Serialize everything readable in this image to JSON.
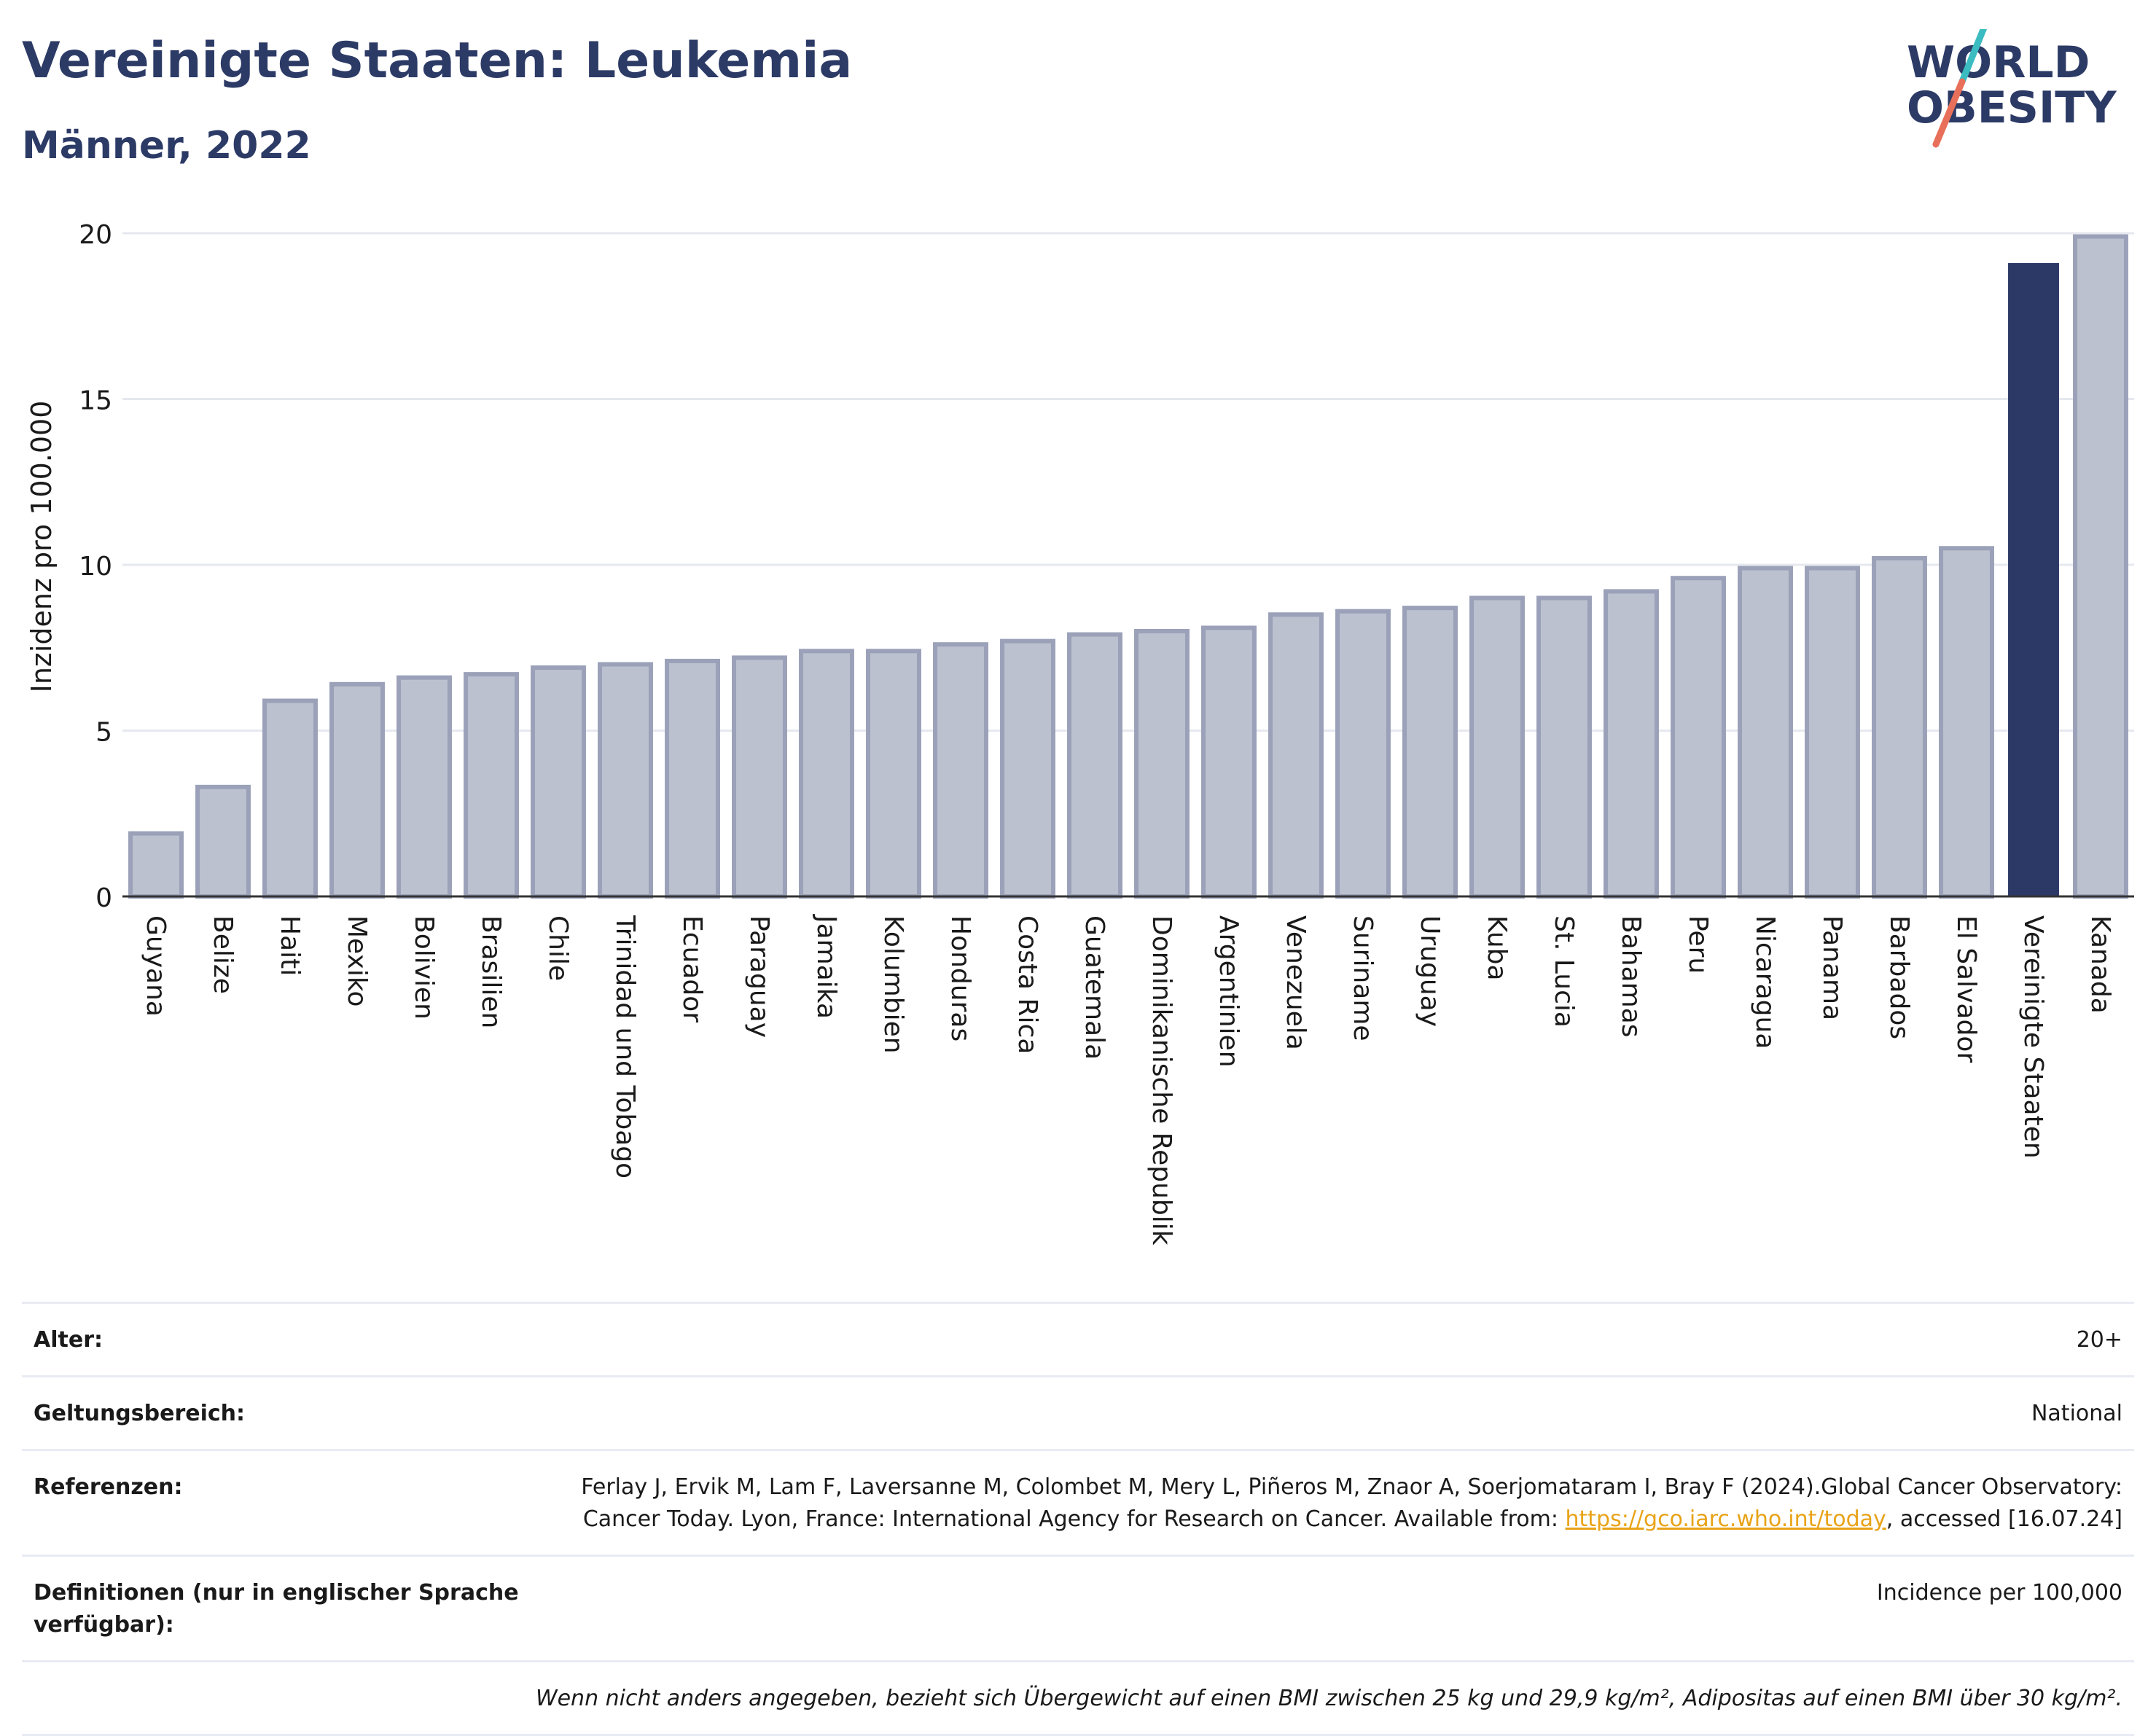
{
  "header": {
    "title": "Vereinigte Staaten: Leukemia",
    "subtitle": "Männer, 2022"
  },
  "logo": {
    "line1": "WORLD",
    "line2": "OBESITY"
  },
  "colors": {
    "highlight": "#2c3866",
    "bar_fill": "#bcc1cf",
    "bar_stroke": "#9aa1b8",
    "title": "#2c3a66",
    "logo_teal": "#3bbcc0",
    "logo_coral": "#e8705a"
  },
  "chart_data": {
    "type": "bar",
    "title": "",
    "xlabel": "",
    "ylabel": "Inzidenz pro 100.000",
    "ylim": [
      0,
      20
    ],
    "yticks": [
      0,
      5,
      10,
      15,
      20
    ],
    "grid": true,
    "highlight_category": "Vereinigte Staaten",
    "categories": [
      "Guyana",
      "Belize",
      "Haiti",
      "Mexiko",
      "Bolivien",
      "Brasilien",
      "Chile",
      "Trinidad und Tobago",
      "Ecuador",
      "Paraguay",
      "Jamaika",
      "Kolumbien",
      "Honduras",
      "Costa Rica",
      "Guatemala",
      "Dominikanische Republik",
      "Argentinien",
      "Venezuela",
      "Suriname",
      "Uruguay",
      "Kuba",
      "St. Lucia",
      "Bahamas",
      "Peru",
      "Nicaragua",
      "Panama",
      "Barbados",
      "El Salvador",
      "Vereinigte Staaten",
      "Kanada"
    ],
    "values": [
      1.9,
      3.3,
      5.9,
      6.4,
      6.6,
      6.7,
      6.9,
      7.0,
      7.1,
      7.2,
      7.4,
      7.4,
      7.6,
      7.7,
      7.9,
      8.0,
      8.1,
      8.5,
      8.6,
      8.7,
      9.0,
      9.0,
      9.2,
      9.6,
      9.9,
      9.9,
      10.2,
      10.5,
      19.1,
      19.9
    ]
  },
  "info": {
    "age_label": "Alter:",
    "age_value": "20+",
    "scope_label": "Geltungsbereich:",
    "scope_value": "National",
    "ref_label": "Referenzen:",
    "ref_text_1": "Ferlay J, Ervik M, Lam F, Laversanne M, Colombet M, Mery L, Piñeros M, Znaor A, Soerjomataram I, Bray F (2024).Global Cancer Observatory: Cancer Today. Lyon, France: International Agency for Research on Cancer. Available from: ",
    "ref_link": "https://gco.iarc.who.int/today",
    "ref_text_2": ", accessed [16.07.24]",
    "def_label": "Definitionen (nur in englischer Sprache verfügbar):",
    "def_value": "Incidence per 100,000",
    "note": "Wenn nicht anders angegeben, bezieht sich Übergewicht auf einen BMI zwischen 25 kg und 29,9 kg/m², Adipositas auf einen BMI über 30 kg/m²."
  }
}
